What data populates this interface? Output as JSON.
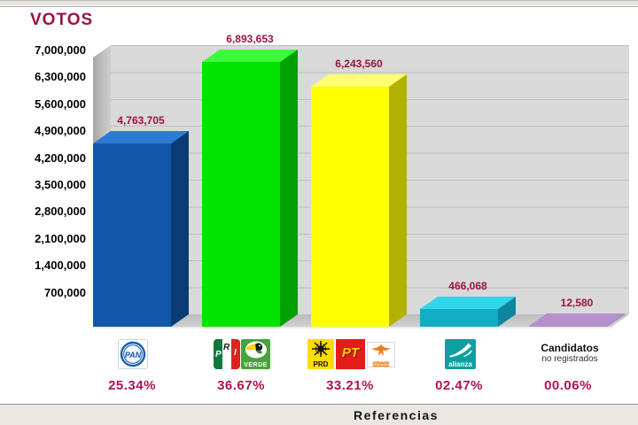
{
  "title": "VOTOS",
  "footer": {
    "label": "Referencias"
  },
  "chart_data": {
    "type": "bar",
    "title": "VOTOS",
    "ylabel": "VOTOS",
    "ylim": [
      0,
      7000000
    ],
    "ytick_interval": 700000,
    "yticks": [
      "7,000,000",
      "6,300,000",
      "5,600,000",
      "4,900,000",
      "4,200,000",
      "3,500,000",
      "2,800,000",
      "2,100,000",
      "1,400,000",
      "700,000"
    ],
    "grid": true,
    "legend_position": "bottom",
    "categories": [
      "PAN",
      "PRI / VERDE",
      "PRD / PT / Movimiento Ciudadano",
      "Nueva Alianza",
      "Candidatos no registrados"
    ],
    "bars": [
      {
        "party": "PAN",
        "value": 4763705,
        "label": "4,763,705",
        "percentage": "25.34%",
        "colors": [
          "#1158a8",
          "#2d7ad4",
          "#0b3b74"
        ]
      },
      {
        "party": "PRI / VERDE",
        "value": 6893653,
        "label": "6,893,653",
        "percentage": "36.67%",
        "colors": [
          "#00e400",
          "#3cfa3c",
          "#00a000"
        ]
      },
      {
        "party": "PRD / PT / Movimiento Ciudadano",
        "value": 6243560,
        "label": "6,243,560",
        "percentage": "33.21%",
        "colors": [
          "#ffff00",
          "#ffff70",
          "#b1b100"
        ]
      },
      {
        "party": "Nueva Alianza",
        "value": 466068,
        "label": "466,068",
        "percentage": "02.47%",
        "colors": [
          "#12adc5",
          "#33d6e9",
          "#0c86a1"
        ]
      },
      {
        "party": "Candidatos no registrados",
        "value": 12580,
        "label": "12,580",
        "percentage": "00.06%",
        "colors": [
          "#b28cc6",
          "#b791cb",
          "#9a74b2"
        ]
      }
    ],
    "percentages": [
      "25.34%",
      "36.67%",
      "33.21%",
      "02.47%",
      "00.06%"
    ],
    "accent_text_color": "#9c1245"
  },
  "legend": {
    "pan": "PAN",
    "pri_p": "P",
    "pri_r": "R",
    "pri_i": "I",
    "verde": "VERDE",
    "prd": "PRD",
    "pt": "PT",
    "mc_line1": "MOVIMIENTO",
    "mc_line2": "CIUDADANO",
    "alianza": "alianza",
    "candidatos_line1": "Candidatos",
    "candidatos_line2": "no registrados"
  }
}
